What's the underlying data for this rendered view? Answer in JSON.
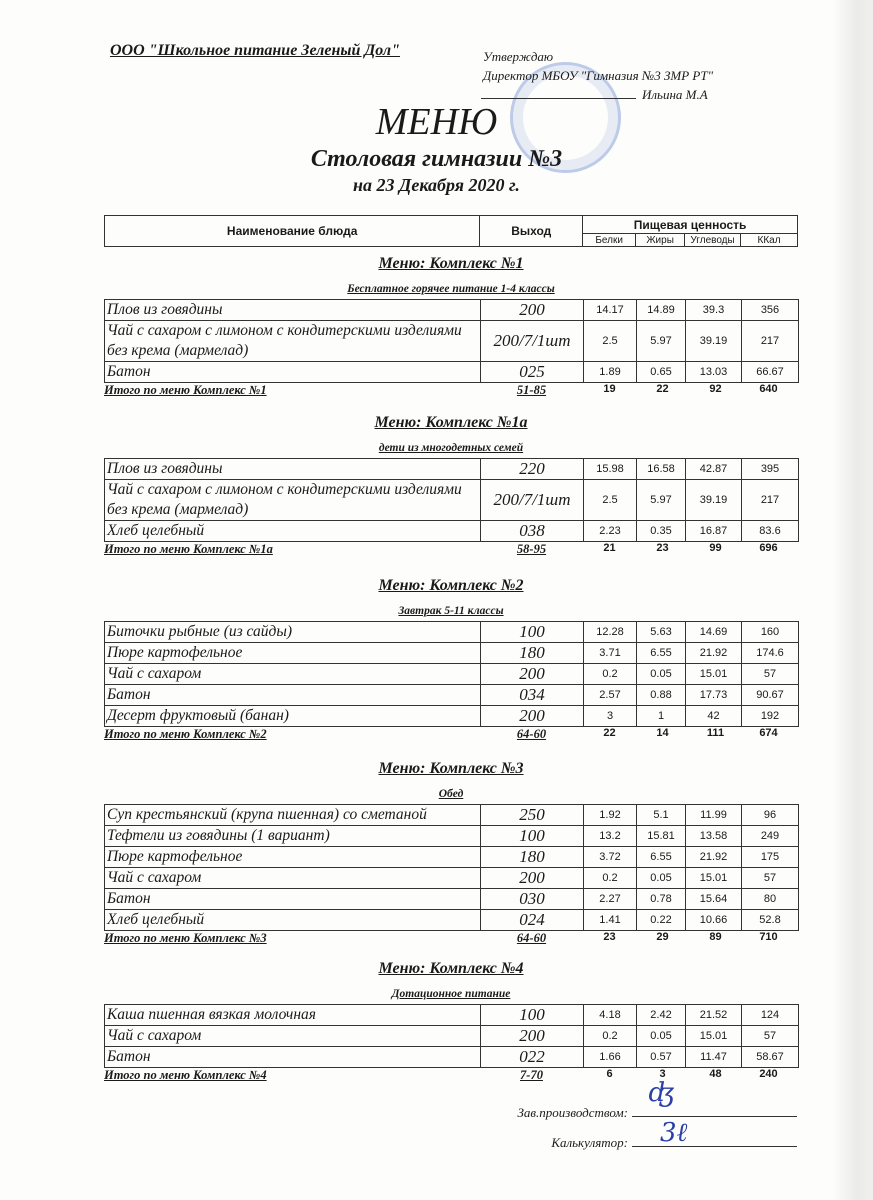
{
  "header": {
    "organization": "ООО \"Школьное питание Зеленый Дол\"",
    "approve_label": "Утверждаю",
    "approver_position": "Директор МБОУ \"Гимназия №3 ЗМР РТ\"",
    "approver_name": "Ильина М.А"
  },
  "title": "МЕНЮ",
  "subtitle": "Столовая гимназии №3",
  "date_line": "на 23 Декабря 2020 г.",
  "table_header": {
    "name": "Наименование блюда",
    "output": "Выход",
    "nutrition": "Пищевая ценность",
    "columns": [
      "Белки",
      "Жиры",
      "Углеводы",
      "ККал"
    ]
  },
  "sections": [
    {
      "title": "Меню: Комплекс №1",
      "subtitle": "Бесплатное горячее питание  1-4 классы",
      "items": [
        {
          "name": "Плов из говядины",
          "output": "200",
          "values": [
            "14.17",
            "14.89",
            "39.3",
            "356"
          ]
        },
        {
          "name": "Чай с сахаром с лимоном с кондитерскими изделиями без крема (мармелад)",
          "output": "200/7/1шт",
          "values": [
            "2.5",
            "5.97",
            "39.19",
            "217"
          ]
        },
        {
          "name": "Батон",
          "output": "025",
          "values": [
            "1.89",
            "0.65",
            "13.03",
            "66.67"
          ]
        }
      ],
      "total": {
        "label": "Итого по меню Комплекс №1",
        "output": "51-85",
        "values": [
          "19",
          "22",
          "92",
          "640"
        ]
      }
    },
    {
      "title": "Меню: Комплекс №1а",
      "subtitle": "дети из многодетных семей",
      "items": [
        {
          "name": "Плов из говядины",
          "output": "220",
          "values": [
            "15.98",
            "16.58",
            "42.87",
            "395"
          ]
        },
        {
          "name": "Чай с сахаром с лимоном с кондитерскими изделиями без крема (мармелад)",
          "output": "200/7/1шт",
          "values": [
            "2.5",
            "5.97",
            "39.19",
            "217"
          ]
        },
        {
          "name": "Хлеб  целебный",
          "output": "038",
          "values": [
            "2.23",
            "0.35",
            "16.87",
            "83.6"
          ]
        }
      ],
      "total": {
        "label": "Итого по меню Комплекс №1а",
        "output": "58-95",
        "values": [
          "21",
          "23",
          "99",
          "696"
        ]
      }
    },
    {
      "title": "Меню: Комплекс №2",
      "subtitle": "Завтрак 5-11 классы",
      "items": [
        {
          "name": "Биточки рыбные (из сайды)",
          "output": "100",
          "values": [
            "12.28",
            "5.63",
            "14.69",
            "160"
          ]
        },
        {
          "name": "Пюре картофельное",
          "output": "180",
          "values": [
            "3.71",
            "6.55",
            "21.92",
            "174.6"
          ]
        },
        {
          "name": "Чай с сахаром",
          "output": "200",
          "values": [
            "0.2",
            "0.05",
            "15.01",
            "57"
          ]
        },
        {
          "name": "Батон",
          "output": "034",
          "values": [
            "2.57",
            "0.88",
            "17.73",
            "90.67"
          ]
        },
        {
          "name": "Десерт фруктовый (банан)",
          "output": "200",
          "values": [
            "3",
            "1",
            "42",
            "192"
          ]
        }
      ],
      "total": {
        "label": "Итого по меню Комплекс №2",
        "output": "64-60",
        "values": [
          "22",
          "14",
          "111",
          "674"
        ]
      }
    },
    {
      "title": "Меню: Комплекс №3",
      "subtitle": "Обед",
      "items": [
        {
          "name": "Суп крестьянский (крупа пшенная) со сметаной",
          "output": "250",
          "values": [
            "1.92",
            "5.1",
            "11.99",
            "96"
          ]
        },
        {
          "name": "Тефтели  из говядины (1 вариант)",
          "output": "100",
          "values": [
            "13.2",
            "15.81",
            "13.58",
            "249"
          ]
        },
        {
          "name": "Пюре картофельное",
          "output": "180",
          "values": [
            "3.72",
            "6.55",
            "21.92",
            "175"
          ]
        },
        {
          "name": "Чай с сахаром",
          "output": "200",
          "values": [
            "0.2",
            "0.05",
            "15.01",
            "57"
          ]
        },
        {
          "name": "Батон",
          "output": "030",
          "values": [
            "2.27",
            "0.78",
            "15.64",
            "80"
          ]
        },
        {
          "name": "Хлеб  целебный",
          "output": "024",
          "values": [
            "1.41",
            "0.22",
            "10.66",
            "52.8"
          ]
        }
      ],
      "total": {
        "label": "Итого по меню Комплекс №3",
        "output": "64-60",
        "values": [
          "23",
          "29",
          "89",
          "710"
        ]
      }
    },
    {
      "title": "Меню: Комплекс №4",
      "subtitle": "Дотационное питание",
      "items": [
        {
          "name": "Каша пшенная вязкая молочная",
          "output": "100",
          "values": [
            "4.18",
            "2.42",
            "21.52",
            "124"
          ]
        },
        {
          "name": "Чай с сахаром",
          "output": "200",
          "values": [
            "0.2",
            "0.05",
            "15.01",
            "57"
          ]
        },
        {
          "name": "Батон",
          "output": "022",
          "values": [
            "1.66",
            "0.57",
            "11.47",
            "58.67"
          ]
        }
      ],
      "total": {
        "label": "Итого по меню Комплекс №4",
        "output": "7-70",
        "values": [
          "6",
          "3",
          "48",
          "240"
        ]
      }
    }
  ],
  "signatures": {
    "production_head_label": "Зав.производством:",
    "calculator_label": "Калькулятор:"
  }
}
